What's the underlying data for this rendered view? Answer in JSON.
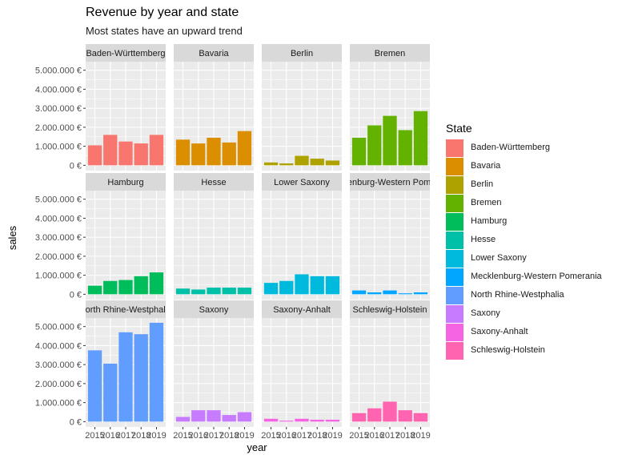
{
  "title": "Revenue by year and state",
  "subtitle": "Most states have an upward trend",
  "chart_data": {
    "type": "bar",
    "facet_layout": "4 columns x 3 rows, shared y axis",
    "title": "Revenue by year and state",
    "subtitle": "Most states have an upward trend",
    "xlabel": "year",
    "ylabel": "sales",
    "ylim": [
      0,
      5200000
    ],
    "y_ticks": [
      "0 €",
      "1.000.000 €",
      "2.000.000 €",
      "3.000.000 €",
      "4.000.000 €",
      "5.000.000 €"
    ],
    "y_tick_values": [
      0,
      1000000,
      2000000,
      3000000,
      4000000,
      5000000
    ],
    "x_ticks": [
      "2015",
      "2016",
      "2017",
      "2018",
      "2019"
    ],
    "grid": true,
    "legend_title": "State",
    "legend_position": "right",
    "facets": [
      {
        "name": "Baden-Württemberg",
        "label": "Baden-Württemberg",
        "color": "#F8766D",
        "values": [
          1050000,
          1600000,
          1250000,
          1150000,
          1600000
        ]
      },
      {
        "name": "Bavaria",
        "label": "Bavaria",
        "color": "#DB8E00",
        "values": [
          1350000,
          1150000,
          1450000,
          1200000,
          1800000
        ]
      },
      {
        "name": "Berlin",
        "label": "Berlin",
        "color": "#AEA200",
        "values": [
          150000,
          100000,
          500000,
          350000,
          250000
        ]
      },
      {
        "name": "Bremen",
        "label": "Bremen",
        "color": "#64B200",
        "values": [
          1450000,
          2100000,
          2600000,
          1850000,
          2850000
        ]
      },
      {
        "name": "Hamburg",
        "label": "Hamburg",
        "color": "#00BD5C",
        "values": [
          450000,
          700000,
          750000,
          950000,
          1150000
        ]
      },
      {
        "name": "Hesse",
        "label": "Hesse",
        "color": "#00C1A7",
        "values": [
          300000,
          250000,
          350000,
          350000,
          350000
        ]
      },
      {
        "name": "Lower Saxony",
        "label": "Lower Saxony",
        "color": "#00BADE",
        "values": [
          600000,
          700000,
          1050000,
          950000,
          950000
        ]
      },
      {
        "name": "Mecklenburg-Western Pomerania",
        "label": "Mecklenburg-Western Pomerania",
        "color": "#00A6FF",
        "values": [
          200000,
          100000,
          200000,
          50000,
          100000
        ]
      },
      {
        "name": "North Rhine-Westphalia",
        "label": "North Rhine-Westphalia",
        "color": "#619CFF",
        "values": [
          3750000,
          3050000,
          4700000,
          4600000,
          5200000
        ]
      },
      {
        "name": "Saxony",
        "label": "Saxony",
        "color": "#C77CFF",
        "values": [
          250000,
          600000,
          600000,
          350000,
          500000
        ]
      },
      {
        "name": "Saxony-Anhalt",
        "label": "Saxony-Anhalt",
        "color": "#F564E3",
        "values": [
          150000,
          50000,
          150000,
          100000,
          100000
        ]
      },
      {
        "name": "Schleswig-Holstein",
        "label": "Schleswig-Holstein",
        "color": "#FF64B0",
        "values": [
          450000,
          700000,
          1050000,
          600000,
          450000
        ]
      }
    ]
  }
}
